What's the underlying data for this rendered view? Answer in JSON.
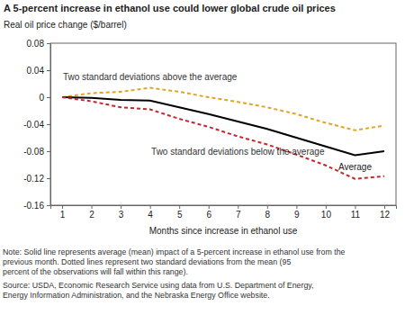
{
  "chart_data": {
    "type": "line",
    "title": "A 5-percent increase in ethanol use could lower global crude oil prices",
    "y_label": "Real oil price change ($/barrel)",
    "x_label": "Months since increase in ethanol use",
    "x": [
      1,
      2,
      3,
      4,
      5,
      6,
      7,
      8,
      9,
      10,
      11,
      12
    ],
    "xlim": [
      0.6,
      12.4
    ],
    "xticks": [
      1,
      2,
      3,
      4,
      5,
      6,
      7,
      8,
      9,
      10,
      11,
      12
    ],
    "ylim": [
      -0.16,
      0.08
    ],
    "yticks": [
      -0.16,
      -0.12,
      -0.08,
      -0.04,
      0,
      0.04,
      0.08
    ],
    "grid": false,
    "series": [
      {
        "name": "Two standard deviations above the average",
        "color": "#e0a526",
        "line_style": "dashed",
        "values": [
          0,
          0.006,
          0.008,
          0.014,
          0.008,
          0,
          -0.007,
          -0.015,
          -0.025,
          -0.038,
          -0.049,
          -0.042
        ]
      },
      {
        "name": "Average",
        "color": "#000000",
        "line_style": "solid",
        "values": [
          0,
          -0.001,
          -0.004,
          -0.005,
          -0.015,
          -0.025,
          -0.036,
          -0.047,
          -0.06,
          -0.073,
          -0.086,
          -0.08
        ]
      },
      {
        "name": "Two standard deviations below the average",
        "color": "#c4262e",
        "line_style": "dashed",
        "values": [
          0,
          -0.006,
          -0.015,
          -0.018,
          -0.032,
          -0.044,
          -0.058,
          -0.07,
          -0.085,
          -0.101,
          -0.121,
          -0.117
        ]
      }
    ],
    "notes": [
      "Note: Solid line represents average (mean) impact of a 5-percent increase in ethanol use from the",
      "previous month.  Dotted lines represent two standard deviations from the mean (95",
      "percent of the observations will fall within this range)."
    ],
    "source": [
      "Source: USDA, Economic Research Service using data from U.S. Department of Energy,",
      "Energy Information Administration, and the Nebraska Energy Office website."
    ]
  }
}
